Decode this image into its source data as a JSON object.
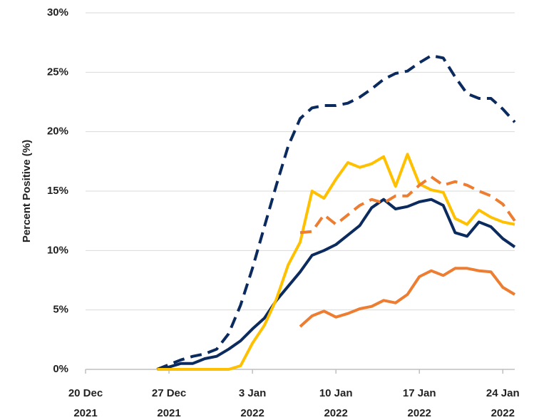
{
  "chart_data": {
    "type": "line",
    "y_label": "Percent Positive (%)",
    "x": [
      "2021-12-26",
      "2021-12-27",
      "2021-12-28",
      "2021-12-29",
      "2021-12-30",
      "2021-12-31",
      "2022-01-01",
      "2022-01-02",
      "2022-01-03",
      "2022-01-04",
      "2022-01-05",
      "2022-01-06",
      "2022-01-07",
      "2022-01-08",
      "2022-01-09",
      "2022-01-10",
      "2022-01-11",
      "2022-01-12",
      "2022-01-13",
      "2022-01-14",
      "2022-01-15",
      "2022-01-16",
      "2022-01-17",
      "2022-01-18",
      "2022-01-19",
      "2022-01-20",
      "2022-01-21",
      "2022-01-22",
      "2022-01-23",
      "2022-01-24",
      "2022-01-25"
    ],
    "series": [
      {
        "color": "#0b2a5e",
        "dashed": true,
        "values": [
          0,
          0.4,
          0.8,
          1.1,
          1.3,
          1.7,
          3.0,
          5.4,
          8.5,
          12.0,
          15.5,
          18.8,
          21.1,
          22.0,
          22.2,
          22.2,
          22.4,
          22.9,
          23.6,
          24.4,
          24.9,
          25.1,
          25.8,
          26.4,
          26.2,
          24.6,
          23.2,
          22.8,
          22.8,
          21.9,
          20.8
        ]
      },
      {
        "color": "#0b2a5e",
        "dashed": false,
        "values": [
          0,
          0.2,
          0.5,
          0.5,
          0.9,
          1.1,
          1.7,
          2.4,
          3.4,
          4.3,
          5.8,
          7.0,
          8.2,
          9.6,
          10.0,
          10.5,
          11.3,
          12.1,
          13.6,
          14.3,
          13.5,
          13.7,
          14.1,
          14.3,
          13.8,
          11.5,
          11.2,
          12.4,
          12.0,
          11.0,
          10.3
        ]
      },
      {
        "color": "#ffc000",
        "dashed": false,
        "values": [
          0,
          0,
          0,
          0,
          0,
          0,
          0,
          0.3,
          2.2,
          3.7,
          5.9,
          8.8,
          10.7,
          15.0,
          14.4,
          16.0,
          17.4,
          17.0,
          17.3,
          17.9,
          15.4,
          18.1,
          15.6,
          15.1,
          14.9,
          12.7,
          12.2,
          13.4,
          12.8,
          12.4,
          12.2
        ]
      },
      {
        "color": "#ed7d31",
        "dashed": true,
        "values": [
          null,
          null,
          null,
          null,
          null,
          null,
          null,
          null,
          null,
          null,
          null,
          null,
          11.5,
          11.6,
          13.0,
          12.2,
          13.0,
          13.8,
          14.3,
          14.0,
          14.6,
          14.6,
          15.5,
          16.2,
          15.5,
          15.8,
          15.5,
          15.0,
          14.6,
          13.9,
          12.5
        ]
      },
      {
        "color": "#ed7d31",
        "dashed": false,
        "values": [
          null,
          null,
          null,
          null,
          null,
          null,
          null,
          null,
          null,
          null,
          null,
          null,
          3.6,
          4.5,
          4.9,
          4.4,
          4.7,
          5.1,
          5.3,
          5.8,
          5.6,
          6.3,
          7.8,
          8.3,
          7.9,
          8.5,
          8.5,
          8.3,
          8.2,
          6.9,
          6.3
        ]
      }
    ],
    "xlim": [
      "2021-12-20",
      "2022-01-25"
    ],
    "xticks": [
      {
        "value": "2021-12-20",
        "label": "20 Dec 2021"
      },
      {
        "value": "2021-12-27",
        "label": "27 Dec 2021"
      },
      {
        "value": "2022-01-03",
        "label": "3 Jan 2022"
      },
      {
        "value": "2022-01-10",
        "label": "10 Jan 2022"
      },
      {
        "value": "2022-01-17",
        "label": "17 Jan 2022"
      },
      {
        "value": "2022-01-24",
        "label": "24 Jan 2022"
      }
    ],
    "ylim": [
      0,
      30
    ],
    "yticks": [
      {
        "value": 0,
        "label": "0%"
      },
      {
        "value": 5,
        "label": "5%"
      },
      {
        "value": 10,
        "label": "10%"
      },
      {
        "value": 15,
        "label": "15%"
      },
      {
        "value": 20,
        "label": "20%"
      },
      {
        "value": 25,
        "label": "25%"
      },
      {
        "value": 30,
        "label": "30%"
      }
    ],
    "grid": true
  }
}
